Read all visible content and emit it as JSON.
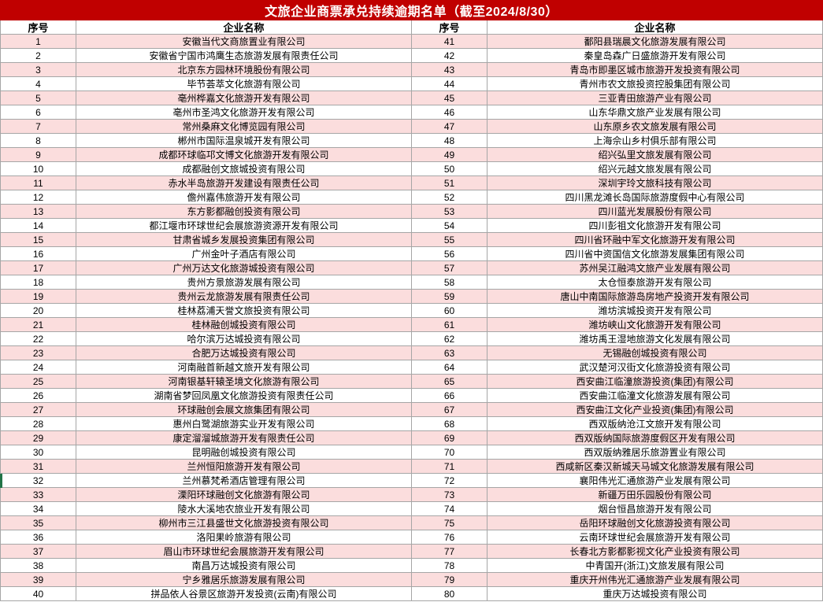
{
  "title": "文旅企业商票承兑持续逾期名单（截至2024/8/30）",
  "colors": {
    "header_red": "#C00000",
    "row_pink": "#FBDDDD",
    "border_gray": "#A6A6A6",
    "selection_green": "#217346",
    "title_text": "#FFFFFF"
  },
  "columns": {
    "index_label": "序号",
    "name_label": "企业名称"
  },
  "table": {
    "left": [
      {
        "no": "1",
        "name": "安徽当代文商旅置业有限公司"
      },
      {
        "no": "2",
        "name": "安徽省宁国市鸿鹰生态旅游发展有限责任公司"
      },
      {
        "no": "3",
        "name": "北京东方园林环境股份有限公司"
      },
      {
        "no": "4",
        "name": "毕节荟萃文化旅游有限公司"
      },
      {
        "no": "5",
        "name": "亳州桦嘉文化旅游开发有限公司"
      },
      {
        "no": "6",
        "name": "亳州市圣鸿文化旅游开发有限公司"
      },
      {
        "no": "7",
        "name": "常州桑麻文化博览园有限公司"
      },
      {
        "no": "8",
        "name": "郴州市国际温泉城开发有限公司"
      },
      {
        "no": "9",
        "name": "成都环球临邛文博文化旅游开发有限公司"
      },
      {
        "no": "10",
        "name": "成都融创文旅城投资有限公司"
      },
      {
        "no": "11",
        "name": "赤水半岛旅游开发建设有限责任公司"
      },
      {
        "no": "12",
        "name": "儋州嘉伟旅游开发有限公司"
      },
      {
        "no": "13",
        "name": "东方影都融创投资有限公司"
      },
      {
        "no": "14",
        "name": "都江堰市环球世纪会展旅游资源开发有限公司"
      },
      {
        "no": "15",
        "name": "甘肃省城乡发展投资集团有限公司"
      },
      {
        "no": "16",
        "name": "广州金叶子酒店有限公司"
      },
      {
        "no": "17",
        "name": "广州万达文化旅游城投资有限公司"
      },
      {
        "no": "18",
        "name": "贵州方景旅游发展有限公司"
      },
      {
        "no": "19",
        "name": "贵州云龙旅游发展有限责任公司"
      },
      {
        "no": "20",
        "name": "桂林荔浦天誉文旅投资有限公司"
      },
      {
        "no": "21",
        "name": "桂林融创城投资有限公司"
      },
      {
        "no": "22",
        "name": "哈尔滨万达城投资有限公司"
      },
      {
        "no": "23",
        "name": "合肥万达城投资有限公司"
      },
      {
        "no": "24",
        "name": "河南融首新越文旅开发有限公司"
      },
      {
        "no": "25",
        "name": "河南银基轩辕圣境文化旅游有限公司"
      },
      {
        "no": "26",
        "name": "湖南省梦回凤凰文化旅游投资有限责任公司"
      },
      {
        "no": "27",
        "name": "环球融创会展文旅集团有限公司"
      },
      {
        "no": "28",
        "name": "惠州白鹭湖旅游实业开发有限公司"
      },
      {
        "no": "29",
        "name": "康定溜溜城旅游开发有限责任公司"
      },
      {
        "no": "30",
        "name": "昆明融创城投资有限公司"
      },
      {
        "no": "31",
        "name": "兰州恒阳旅游开发有限公司"
      },
      {
        "no": "32",
        "name": "兰州慕梵希酒店管理有限公司"
      },
      {
        "no": "33",
        "name": "溧阳环球融创文化旅游有限公司"
      },
      {
        "no": "34",
        "name": "陵水大溪地农旅业开发有限公司"
      },
      {
        "no": "35",
        "name": "柳州市三江县盛世文化旅游投资有限公司"
      },
      {
        "no": "36",
        "name": "洛阳果岭旅游有限公司"
      },
      {
        "no": "37",
        "name": "眉山市环球世纪会展旅游开发有限公司"
      },
      {
        "no": "38",
        "name": "南昌万达城投资有限公司"
      },
      {
        "no": "39",
        "name": "宁乡雅居乐旅游发展有限公司"
      },
      {
        "no": "40",
        "name": "拼品依人谷景区旅游开发投资(云南)有限公司"
      }
    ],
    "right": [
      {
        "no": "41",
        "name": "鄱阳县瑞晨文化旅游发展有限公司"
      },
      {
        "no": "42",
        "name": "秦皇岛森广日盛旅游开发有限公司"
      },
      {
        "no": "43",
        "name": "青岛市即墨区城市旅游开发投资有限公司"
      },
      {
        "no": "44",
        "name": "青州市农文旅投资控股集团有限公司"
      },
      {
        "no": "45",
        "name": "三亚青田旅游产业有限公司"
      },
      {
        "no": "46",
        "name": "山东华鼎文旅产业发展有限公司"
      },
      {
        "no": "47",
        "name": "山东原乡农文旅发展有限公司"
      },
      {
        "no": "48",
        "name": "上海佘山乡村俱乐部有限公司"
      },
      {
        "no": "49",
        "name": "绍兴弘里文旅发展有限公司"
      },
      {
        "no": "50",
        "name": "绍兴元越文旅发展有限公司"
      },
      {
        "no": "51",
        "name": "深圳宇玲文旅科技有限公司"
      },
      {
        "no": "52",
        "name": "四川黑龙滩长岛国际旅游度假中心有限公司"
      },
      {
        "no": "53",
        "name": "四川蓝光发展股份有限公司"
      },
      {
        "no": "54",
        "name": "四川彭祖文化旅游开发有限公司"
      },
      {
        "no": "55",
        "name": "四川省环融中军文化旅游开发有限公司"
      },
      {
        "no": "56",
        "name": "四川省中资国信文化旅游发展集团有限公司"
      },
      {
        "no": "57",
        "name": "苏州吴江融鸿文旅产业发展有限公司"
      },
      {
        "no": "58",
        "name": "太仓恒泰旅游开发有限公司"
      },
      {
        "no": "59",
        "name": "唐山中南国际旅游岛房地产投资开发有限公司"
      },
      {
        "no": "60",
        "name": "潍坊滨城投资开发有限公司"
      },
      {
        "no": "61",
        "name": "潍坊峡山文化旅游开发有限公司"
      },
      {
        "no": "62",
        "name": "潍坊禹王湿地旅游文化发展有限公司"
      },
      {
        "no": "63",
        "name": "无锡融创城投资有限公司"
      },
      {
        "no": "64",
        "name": "武汉楚河汉街文化旅游投资有限公司"
      },
      {
        "no": "65",
        "name": "西安曲江临潼旅游投资(集团)有限公司"
      },
      {
        "no": "66",
        "name": "西安曲江临潼文化旅游发展有限公司"
      },
      {
        "no": "67",
        "name": "西安曲江文化产业投资(集团)有限公司"
      },
      {
        "no": "68",
        "name": "西双版纳沧江文旅开发有限公司"
      },
      {
        "no": "69",
        "name": "西双版纳国际旅游度假区开发有限公司"
      },
      {
        "no": "70",
        "name": "西双版纳雅居乐旅游置业有限公司"
      },
      {
        "no": "71",
        "name": "西咸新区秦汉新城天马城文化旅游发展有限公司"
      },
      {
        "no": "72",
        "name": "襄阳伟光汇通旅游产业发展有限公司"
      },
      {
        "no": "73",
        "name": "新疆万田乐园股份有限公司"
      },
      {
        "no": "74",
        "name": "烟台恒昌旅游开发有限公司"
      },
      {
        "no": "75",
        "name": "岳阳环球融创文化旅游投资有限公司"
      },
      {
        "no": "76",
        "name": "云南环球世纪会展旅游开发有限公司"
      },
      {
        "no": "77",
        "name": "长春北方影都影视文化产业投资有限公司"
      },
      {
        "no": "78",
        "name": "中青国开(浙江)文旅发展有限公司"
      },
      {
        "no": "79",
        "name": "重庆开州伟光汇通旅游产业发展有限公司"
      },
      {
        "no": "80",
        "name": "重庆万达城投资有限公司"
      }
    ]
  }
}
